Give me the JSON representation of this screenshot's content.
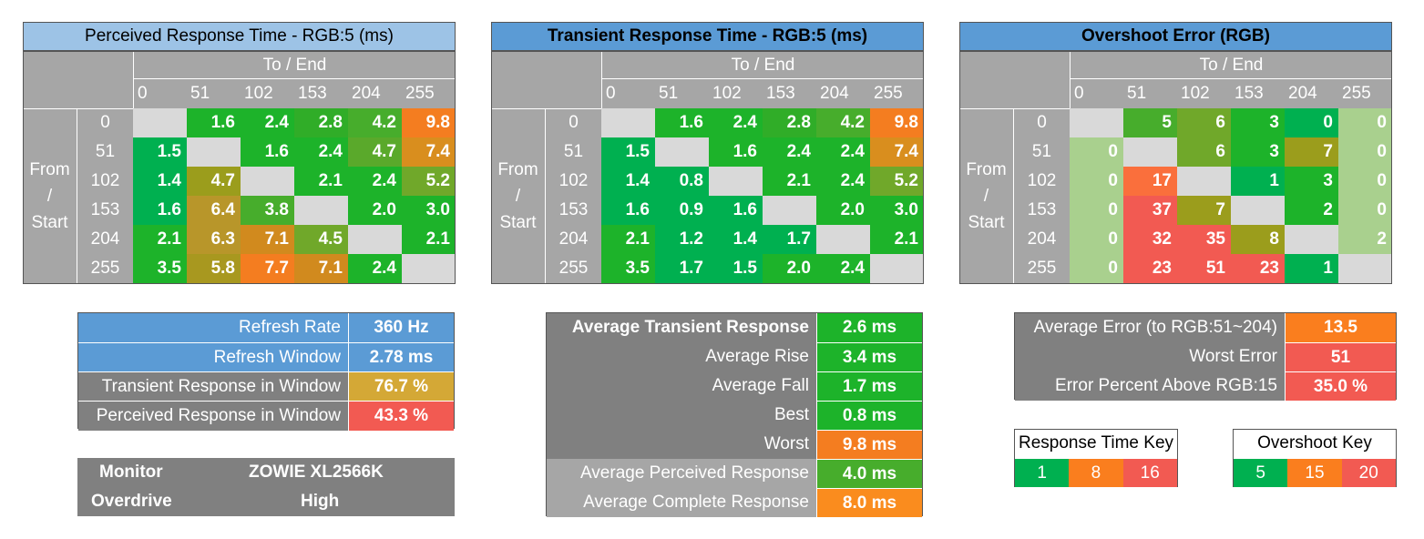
{
  "colors": {
    "green_dark": "#00b050",
    "green": "#1db32a",
    "green_mid": "#47ad2c",
    "olive_green": "#70a82a",
    "olive": "#9b9d1c",
    "khaki": "#b8962a",
    "orange_dark": "#d18a1e",
    "orange": "#fa7e1e",
    "orange_bright": "#f47d20",
    "red": "#f25a52",
    "light_green": "#a9d08e",
    "empty": "#d9d9d9",
    "header_gray": "#a6a6a6",
    "stat_gray": "#808080",
    "blue_light": "#9dc3e6",
    "blue": "#5b9bd5",
    "yellow_gold": "#d4a836"
  },
  "chart_data": [
    {
      "type": "heatmap",
      "title": "Perceived Response Time - RGB:5 (ms)",
      "xlabel": "To / End",
      "ylabel": "From / Start",
      "x": [
        "0",
        "51",
        "102",
        "153",
        "204",
        "255"
      ],
      "y": [
        "0",
        "51",
        "102",
        "153",
        "204",
        "255"
      ],
      "values": [
        [
          "",
          "1.6",
          "2.4",
          "2.8",
          "4.2",
          "9.8"
        ],
        [
          "1.5",
          "",
          "1.6",
          "2.4",
          "4.7",
          "7.4"
        ],
        [
          "1.4",
          "4.7",
          "",
          "2.1",
          "2.4",
          "5.2"
        ],
        [
          "1.6",
          "6.4",
          "3.8",
          "",
          "2.0",
          "3.0"
        ],
        [
          "2.1",
          "6.3",
          "7.1",
          "4.5",
          "",
          "2.1"
        ],
        [
          "3.5",
          "5.8",
          "7.7",
          "7.1",
          "2.4",
          ""
        ]
      ],
      "cell_colors": [
        [
          "#d9d9d9",
          "#1db32a",
          "#1db32a",
          "#30ad28",
          "#47ad2c",
          "#f47d20"
        ],
        [
          "#00b050",
          "#d9d9d9",
          "#1db32a",
          "#1db32a",
          "#5aa92b",
          "#d98e1e"
        ],
        [
          "#00b050",
          "#9b9d1c",
          "#d9d9d9",
          "#1db32a",
          "#1db32a",
          "#70a82a"
        ],
        [
          "#00b050",
          "#b8962a",
          "#47ad2c",
          "#d9d9d9",
          "#1db32a",
          "#1db32a"
        ],
        [
          "#1db32a",
          "#b8962a",
          "#d18a1e",
          "#70a82a",
          "#d9d9d9",
          "#1db32a"
        ],
        [
          "#1db32a",
          "#a8981f",
          "#f47d20",
          "#d18a1e",
          "#1db32a",
          "#d9d9d9"
        ]
      ]
    },
    {
      "type": "heatmap",
      "title": "Transient Response Time - RGB:5 (ms)",
      "xlabel": "To / End",
      "ylabel": "From / Start",
      "x": [
        "0",
        "51",
        "102",
        "153",
        "204",
        "255"
      ],
      "y": [
        "0",
        "51",
        "102",
        "153",
        "204",
        "255"
      ],
      "values": [
        [
          "",
          "1.6",
          "2.4",
          "2.8",
          "4.2",
          "9.8"
        ],
        [
          "1.5",
          "",
          "1.6",
          "2.4",
          "2.4",
          "7.4"
        ],
        [
          "1.4",
          "0.8",
          "",
          "2.1",
          "2.4",
          "5.2"
        ],
        [
          "1.6",
          "0.9",
          "1.6",
          "",
          "2.0",
          "3.0"
        ],
        [
          "2.1",
          "1.2",
          "1.4",
          "1.7",
          "",
          "2.1"
        ],
        [
          "3.5",
          "1.7",
          "1.5",
          "2.0",
          "2.4",
          ""
        ]
      ],
      "cell_colors": [
        [
          "#d9d9d9",
          "#1db32a",
          "#1db32a",
          "#30ad28",
          "#47ad2c",
          "#f47d20"
        ],
        [
          "#00b050",
          "#d9d9d9",
          "#1db32a",
          "#1db32a",
          "#1db32a",
          "#d98e1e"
        ],
        [
          "#00b050",
          "#00b050",
          "#d9d9d9",
          "#1db32a",
          "#1db32a",
          "#70a82a"
        ],
        [
          "#00b050",
          "#00b050",
          "#00b050",
          "#d9d9d9",
          "#1db32a",
          "#1db32a"
        ],
        [
          "#1db32a",
          "#00b050",
          "#00b050",
          "#00b050",
          "#d9d9d9",
          "#1db32a"
        ],
        [
          "#1db32a",
          "#00b050",
          "#00b050",
          "#1db32a",
          "#1db32a",
          "#d9d9d9"
        ]
      ]
    },
    {
      "type": "heatmap",
      "title": "Overshoot Error (RGB)",
      "xlabel": "To / End",
      "ylabel": "From / Start",
      "x": [
        "0",
        "51",
        "102",
        "153",
        "204",
        "255"
      ],
      "y": [
        "0",
        "51",
        "102",
        "153",
        "204",
        "255"
      ],
      "values": [
        [
          "",
          "5",
          "6",
          "3",
          "0",
          "0"
        ],
        [
          "0",
          "",
          "6",
          "3",
          "7",
          "0"
        ],
        [
          "0",
          "17",
          "",
          "1",
          "3",
          "0"
        ],
        [
          "0",
          "37",
          "7",
          "",
          "2",
          "0"
        ],
        [
          "0",
          "32",
          "35",
          "8",
          "",
          "2"
        ],
        [
          "0",
          "23",
          "51",
          "23",
          "1",
          ""
        ]
      ],
      "cell_colors": [
        [
          "#d9d9d9",
          "#47ad2c",
          "#70a82a",
          "#1db32a",
          "#00b050",
          "#a9d08e"
        ],
        [
          "#a9d08e",
          "#d9d9d9",
          "#70a82a",
          "#1db32a",
          "#9b9d1c",
          "#a9d08e"
        ],
        [
          "#a9d08e",
          "#fa6f3c",
          "#d9d9d9",
          "#00b050",
          "#1db32a",
          "#a9d08e"
        ],
        [
          "#a9d08e",
          "#f25a52",
          "#9b9d1c",
          "#d9d9d9",
          "#1db32a",
          "#a9d08e"
        ],
        [
          "#a9d08e",
          "#f25a52",
          "#f25a52",
          "#9b9d1c",
          "#d9d9d9",
          "#a9d08e"
        ],
        [
          "#a9d08e",
          "#f25a52",
          "#f25a52",
          "#f25a52",
          "#00b050",
          "#d9d9d9"
        ]
      ]
    }
  ],
  "from_label": [
    "From",
    "/",
    "Start"
  ],
  "refresh_table": [
    {
      "label": "Refresh Rate",
      "value": "360 Hz",
      "label_bg": "#5b9bd5",
      "value_bg": "#5b9bd5"
    },
    {
      "label": "Refresh Window",
      "value": "2.78 ms",
      "label_bg": "#5b9bd5",
      "value_bg": "#5b9bd5"
    },
    {
      "label": "Transient Response in Window",
      "value": "76.7 %",
      "label_bg": "#808080",
      "value_bg": "#d4a836"
    },
    {
      "label": "Perceived Response in Window",
      "value": "43.3 %",
      "label_bg": "#808080",
      "value_bg": "#f25a52"
    }
  ],
  "monitor_table": {
    "monitor_label": "Monitor",
    "monitor_value": "ZOWIE XL2566K",
    "overdrive_label": "Overdrive",
    "overdrive_value": "High"
  },
  "transient_table": [
    {
      "label": "Average Transient Response",
      "value": "2.6 ms",
      "bold": true,
      "label_bg": "#808080",
      "value_bg": "#1db32a"
    },
    {
      "label": "Average Rise",
      "value": "3.4 ms",
      "bold": false,
      "label_bg": "#808080",
      "value_bg": "#1db32a"
    },
    {
      "label": "Average Fall",
      "value": "1.7 ms",
      "bold": false,
      "label_bg": "#808080",
      "value_bg": "#1db32a"
    },
    {
      "label": "Best",
      "value": "0.8 ms",
      "bold": false,
      "label_bg": "#808080",
      "value_bg": "#1db32a"
    },
    {
      "label": "Worst",
      "value": "9.8 ms",
      "bold": false,
      "label_bg": "#808080",
      "value_bg": "#f47d20"
    },
    {
      "label": "Average Perceived Response",
      "value": "4.0 ms",
      "bold": false,
      "label_bg": "#a6a6a6",
      "value_bg": "#47ad2c"
    },
    {
      "label": "Average Complete Response",
      "value": "8.0 ms",
      "bold": false,
      "label_bg": "#a6a6a6",
      "value_bg": "#fa8c1e"
    }
  ],
  "error_table": [
    {
      "label": "Average Error (to RGB:51~204)",
      "value": "13.5",
      "label_bg": "#808080",
      "value_bg": "#fa7e1e"
    },
    {
      "label": "Worst Error",
      "value": "51",
      "label_bg": "#808080",
      "value_bg": "#f25a52"
    },
    {
      "label": "Error Percent Above RGB:15",
      "value": "35.0 %",
      "label_bg": "#808080",
      "value_bg": "#f25a52"
    }
  ],
  "response_key": {
    "title": "Response Time Key",
    "items": [
      {
        "label": "1",
        "color": "#00b050"
      },
      {
        "label": "8",
        "color": "#fa7e1e"
      },
      {
        "label": "16",
        "color": "#f25a52"
      }
    ]
  },
  "overshoot_key": {
    "title": "Overshoot Key",
    "items": [
      {
        "label": "5",
        "color": "#00b050"
      },
      {
        "label": "15",
        "color": "#fa7e1e"
      },
      {
        "label": "20",
        "color": "#f25a52"
      }
    ]
  }
}
